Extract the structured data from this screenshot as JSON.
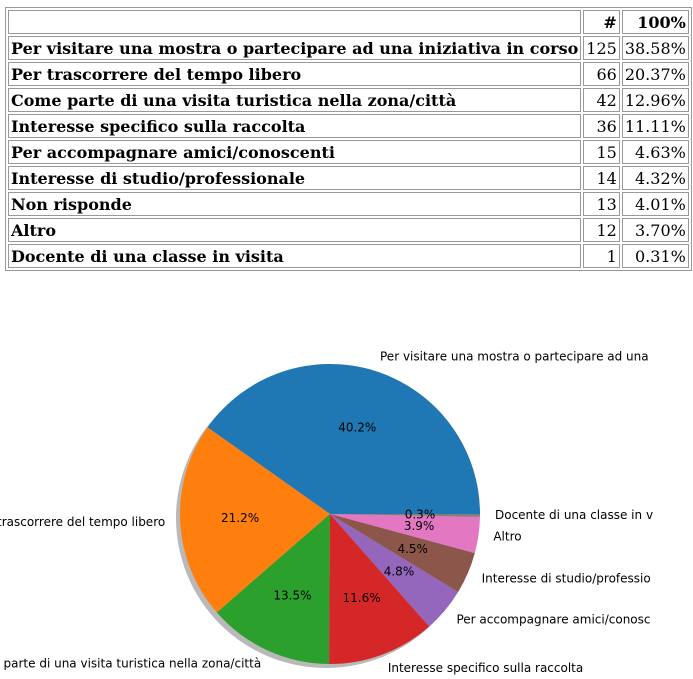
{
  "table": {
    "header": [
      "#",
      "100%"
    ],
    "rows": [
      [
        "Per visitare una mostra o partecipare ad una iniziativa in corso",
        "125",
        "38.58%"
      ],
      [
        "Per trascorrere del tempo libero",
        "66",
        "20.37%"
      ],
      [
        "Come parte di una visita turistica nella zona/città",
        "42",
        "12.96%"
      ],
      [
        "Interesse specifico sulla raccolta",
        "36",
        "11.11%"
      ],
      [
        "Per accompagnare amici/conoscenti",
        "15",
        "4.63%"
      ],
      [
        "Interesse di studio/professionale",
        "14",
        "4.32%"
      ],
      [
        "Non risponde",
        "13",
        "4.01%"
      ],
      [
        "Altro",
        "12",
        "3.70%"
      ],
      [
        "Docente di una classe in visita",
        "1",
        "0.31%"
      ]
    ]
  },
  "chart_data": {
    "type": "pie",
    "categories": [
      "Per visitare una mostra o partecipare ad una",
      "trascorrere del tempo libero",
      "e parte di una visita turistica nella zona/città",
      "Interesse specifico sulla raccolta",
      "Per accompagnare amici/conosc",
      "Interesse di studio/professio",
      "Altro",
      "Docente di una classe in v"
    ],
    "values": [
      40.2,
      21.2,
      13.5,
      11.6,
      4.8,
      4.5,
      3.9,
      0.3
    ],
    "value_labels": [
      "40.2%",
      "21.2%",
      "13.5%",
      "11.6%",
      "4.8%",
      "4.5%",
      "3.9%",
      "0.3%"
    ],
    "colors": [
      "#1f77b4",
      "#ff7f0e",
      "#2ca02c",
      "#d62728",
      "#9467bd",
      "#8c564b",
      "#e377c2",
      "#7f7f7f"
    ],
    "shadow": true
  }
}
